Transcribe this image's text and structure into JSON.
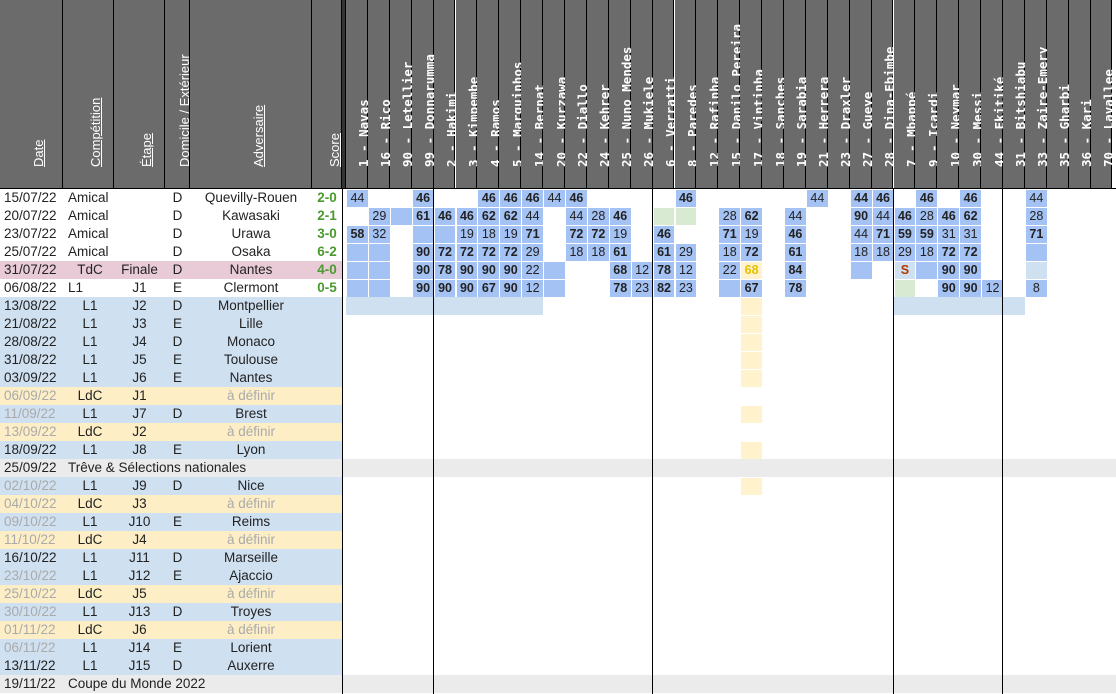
{
  "headers": {
    "date": "Date",
    "competition": "Compétition",
    "etape": "Étape",
    "domicile": "Domicile / Extérieur",
    "adversaire": "Adversaire",
    "score": "Score"
  },
  "players": [
    {
      "num": "1",
      "name": "Navas",
      "sep": false
    },
    {
      "num": "16",
      "name": "Rico",
      "sep": false
    },
    {
      "num": "90",
      "name": "Letellier",
      "sep": false
    },
    {
      "num": "99",
      "name": "Donnarumma",
      "sep": true
    },
    {
      "num": "2",
      "name": "Hakimi",
      "sep": false
    },
    {
      "num": "3",
      "name": "Kimpembe",
      "sep": false
    },
    {
      "num": "4",
      "name": "Ramos",
      "sep": false
    },
    {
      "num": "5",
      "name": "Marquinhos",
      "sep": false
    },
    {
      "num": "14",
      "name": "Bernat",
      "sep": false
    },
    {
      "num": "20",
      "name": "Kurzawa",
      "sep": false
    },
    {
      "num": "22",
      "name": "Diallo",
      "sep": false
    },
    {
      "num": "24",
      "name": "Kehrer",
      "sep": false
    },
    {
      "num": "25",
      "name": "Nuno Mendes",
      "sep": false
    },
    {
      "num": "26",
      "name": "Mukiele",
      "sep": true
    },
    {
      "num": "6",
      "name": "Verratti",
      "sep": false
    },
    {
      "num": "8",
      "name": "Paredes",
      "sep": false
    },
    {
      "num": "12",
      "name": "Rafinha",
      "sep": false
    },
    {
      "num": "15",
      "name": "Danilo Pereira",
      "sep": false
    },
    {
      "num": "17",
      "name": "Vintinha",
      "sep": false
    },
    {
      "num": "18",
      "name": "Sanches",
      "sep": false
    },
    {
      "num": "19",
      "name": "Sarabia",
      "sep": false
    },
    {
      "num": "21",
      "name": "Herrera",
      "sep": false
    },
    {
      "num": "23",
      "name": "Draxler",
      "sep": false
    },
    {
      "num": "27",
      "name": "Gueye",
      "sep": false
    },
    {
      "num": "28",
      "name": "Dina-Ebimbe",
      "sep": true
    },
    {
      "num": "7",
      "name": "Mbappé",
      "sep": false
    },
    {
      "num": "9",
      "name": "Icardi",
      "sep": false
    },
    {
      "num": "10",
      "name": "Neymar",
      "sep": false
    },
    {
      "num": "30",
      "name": "Messi",
      "sep": false
    },
    {
      "num": "44",
      "name": "Ekitiké",
      "sep": true
    },
    {
      "num": "31",
      "name": "Bitshiabu",
      "sep": false
    },
    {
      "num": "33",
      "name": "Zaire-Emery",
      "sep": false
    },
    {
      "num": "35",
      "name": "Gharbi",
      "sep": false
    },
    {
      "num": "36",
      "name": "Kari",
      "sep": false
    },
    {
      "num": "70",
      "name": "Lavallee",
      "sep": false
    }
  ],
  "matches": [
    {
      "date": "15/07/22",
      "comp": "Amical",
      "etape": "",
      "dom": "D",
      "adv": "Quevilly-Rouen",
      "score": "2-0",
      "style": "played",
      "cells": {
        "0": "44",
        "3": "46b",
        "6": "46b",
        "7": "46b",
        "8": "46b",
        "9": "44",
        "10": "46b",
        "15": "46b",
        "21": "44",
        "23": "44b",
        "24": "46b",
        "26": "46b",
        "28": "46b",
        "31": "44"
      }
    },
    {
      "date": "20/07/22",
      "comp": "Amical",
      "etape": "",
      "dom": "D",
      "adv": "Kawasaki",
      "score": "2-1",
      "style": "played",
      "cells": {
        "1": "29",
        "2": "~",
        "3": "61b",
        "4": "46b",
        "5": "46b",
        "6": "62b",
        "7": "62b",
        "8": "44",
        "10": "44",
        "11": "28",
        "12": "46b",
        "14": "g",
        "15": "g",
        "17": "28",
        "18": "62b",
        "20": "44",
        "23": "90b",
        "24": "44",
        "25": "46b",
        "26": "28",
        "27": "46b",
        "28": "62b",
        "31": "28"
      }
    },
    {
      "date": "23/07/22",
      "comp": "Amical",
      "etape": "",
      "dom": "D",
      "adv": "Urawa",
      "score": "3-0",
      "style": "played",
      "cells": {
        "0": "58b",
        "1": "32",
        "3": "~",
        "4": "~",
        "5": "19",
        "6": "18",
        "7": "19",
        "8": "71b",
        "10": "72b",
        "11": "72b",
        "12": "19",
        "14": "46b",
        "17": "71b",
        "18": "19",
        "20": "46b",
        "23": "44",
        "24": "71b",
        "25": "59b",
        "26": "59b",
        "27": "31",
        "28": "31",
        "31": "71b"
      }
    },
    {
      "date": "25/07/22",
      "comp": "Amical",
      "etape": "",
      "dom": "D",
      "adv": "Osaka",
      "score": "6-2",
      "style": "played",
      "cells": {
        "0": "~",
        "1": "~",
        "3": "90b",
        "4": "72b",
        "5": "72b",
        "6": "72b",
        "7": "72b",
        "8": "29",
        "10": "18",
        "11": "18",
        "12": "61b",
        "14": "61b",
        "15": "29",
        "17": "18",
        "18": "72b",
        "20": "61b",
        "23": "18",
        "24": "18",
        "25": "29",
        "26": "18",
        "27": "72b",
        "28": "72b",
        "31": "~"
      }
    },
    {
      "date": "31/07/22",
      "comp": "TdC",
      "etape": "Finale",
      "dom": "D",
      "adv": "Nantes",
      "score": "4-0",
      "style": "tdc",
      "cells": {
        "0": "~",
        "1": "~",
        "3": "90b",
        "4": "78b",
        "5": "90b",
        "6": "90b",
        "7": "90b",
        "8": "22",
        "9": "~",
        "12": "68b",
        "13": "12",
        "14": "78b",
        "15": "12",
        "17": "22",
        "18": "68y",
        "20": "84b",
        "23": "~",
        "25": "S",
        "26": "~",
        "27": "90b",
        "28": "90b",
        "31": "~l"
      }
    },
    {
      "date": "06/08/22",
      "comp": "L1",
      "etape": "J1",
      "dom": "E",
      "adv": "Clermont",
      "score": "0-5",
      "style": "played",
      "cells": {
        "0": "~",
        "1": "~",
        "3": "90b",
        "4": "90b",
        "5": "90b",
        "6": "67b",
        "7": "90b",
        "8": "12",
        "9": "~",
        "12": "78b",
        "13": "23",
        "14": "82b",
        "15": "23",
        "17": "~",
        "18": "67b",
        "20": "78b",
        "25": "g",
        "27": "90b",
        "28": "90b",
        "29": "12",
        "31": "8"
      }
    },
    {
      "date": "13/08/22",
      "comp": "L1",
      "etape": "J2",
      "dom": "D",
      "adv": "Montpellier",
      "score": "",
      "style": "future"
    },
    {
      "date": "21/08/22",
      "comp": "L1",
      "etape": "J3",
      "dom": "E",
      "adv": "Lille",
      "score": "",
      "style": "future"
    },
    {
      "date": "28/08/22",
      "comp": "L1",
      "etape": "J4",
      "dom": "D",
      "adv": "Monaco",
      "score": "",
      "style": "future"
    },
    {
      "date": "31/08/22",
      "comp": "L1",
      "etape": "J5",
      "dom": "E",
      "adv": "Toulouse",
      "score": "",
      "style": "future"
    },
    {
      "date": "03/09/22",
      "comp": "L1",
      "etape": "J6",
      "dom": "E",
      "adv": "Nantes",
      "score": "",
      "style": "future"
    },
    {
      "date": "06/09/22",
      "comp": "LdC",
      "etape": "J1",
      "dom": "",
      "adv": "à définir",
      "score": "",
      "style": "ldc"
    },
    {
      "date": "11/09/22",
      "comp": "L1",
      "etape": "J7",
      "dom": "D",
      "adv": "Brest",
      "score": "",
      "style": "grey"
    },
    {
      "date": "13/09/22",
      "comp": "LdC",
      "etape": "J2",
      "dom": "",
      "adv": "à définir",
      "score": "",
      "style": "ldc"
    },
    {
      "date": "18/09/22",
      "comp": "L1",
      "etape": "J8",
      "dom": "E",
      "adv": "Lyon",
      "score": "",
      "style": "future"
    },
    {
      "date": "25/09/22",
      "comp": "Trêve & Sélections nationales",
      "etape": "",
      "dom": "",
      "adv": "",
      "score": "",
      "style": "break"
    },
    {
      "date": "02/10/22",
      "comp": "L1",
      "etape": "J9",
      "dom": "D",
      "adv": "Nice",
      "score": "",
      "style": "grey"
    },
    {
      "date": "04/10/22",
      "comp": "LdC",
      "etape": "J3",
      "dom": "",
      "adv": "à définir",
      "score": "",
      "style": "ldc"
    },
    {
      "date": "09/10/22",
      "comp": "L1",
      "etape": "J10",
      "dom": "E",
      "adv": "Reims",
      "score": "",
      "style": "grey"
    },
    {
      "date": "11/10/22",
      "comp": "LdC",
      "etape": "J4",
      "dom": "",
      "adv": "à définir",
      "score": "",
      "style": "ldc"
    },
    {
      "date": "16/10/22",
      "comp": "L1",
      "etape": "J11",
      "dom": "D",
      "adv": "Marseille",
      "score": "",
      "style": "future"
    },
    {
      "date": "23/10/22",
      "comp": "L1",
      "etape": "J12",
      "dom": "E",
      "adv": "Ajaccio",
      "score": "",
      "style": "grey"
    },
    {
      "date": "25/10/22",
      "comp": "LdC",
      "etape": "J5",
      "dom": "",
      "adv": "à définir",
      "score": "",
      "style": "ldc"
    },
    {
      "date": "30/10/22",
      "comp": "L1",
      "etape": "J13",
      "dom": "D",
      "adv": "Troyes",
      "score": "",
      "style": "grey"
    },
    {
      "date": "01/11/22",
      "comp": "LdC",
      "etape": "J6",
      "dom": "",
      "adv": "à définir",
      "score": "",
      "style": "ldc"
    },
    {
      "date": "06/11/22",
      "comp": "L1",
      "etape": "J14",
      "dom": "E",
      "adv": "Lorient",
      "score": "",
      "style": "grey"
    },
    {
      "date": "13/11/22",
      "comp": "L1",
      "etape": "J15",
      "dom": "D",
      "adv": "Auxerre",
      "score": "",
      "style": "future"
    },
    {
      "date": "19/11/22",
      "comp": "Coupe du Monde 2022",
      "etape": "",
      "dom": "",
      "adv": "",
      "score": "",
      "style": "break"
    }
  ],
  "colors": {
    "header_bg": "#6b6b6b",
    "played_bg": "#ffffff",
    "future_bg": "#cfe0f1",
    "tdc_bg": "#e8cbd6",
    "ldc_bg": "#fdeec6",
    "break_bg": "#ebebeb",
    "cell_blue": "#a4c2f4",
    "cell_light": "#cfe0f1",
    "cell_green": "#d9ead3",
    "cell_yellow": "#fff2cc",
    "score_green": "#4a9a2f",
    "grey_text": "#aaaaaa"
  }
}
